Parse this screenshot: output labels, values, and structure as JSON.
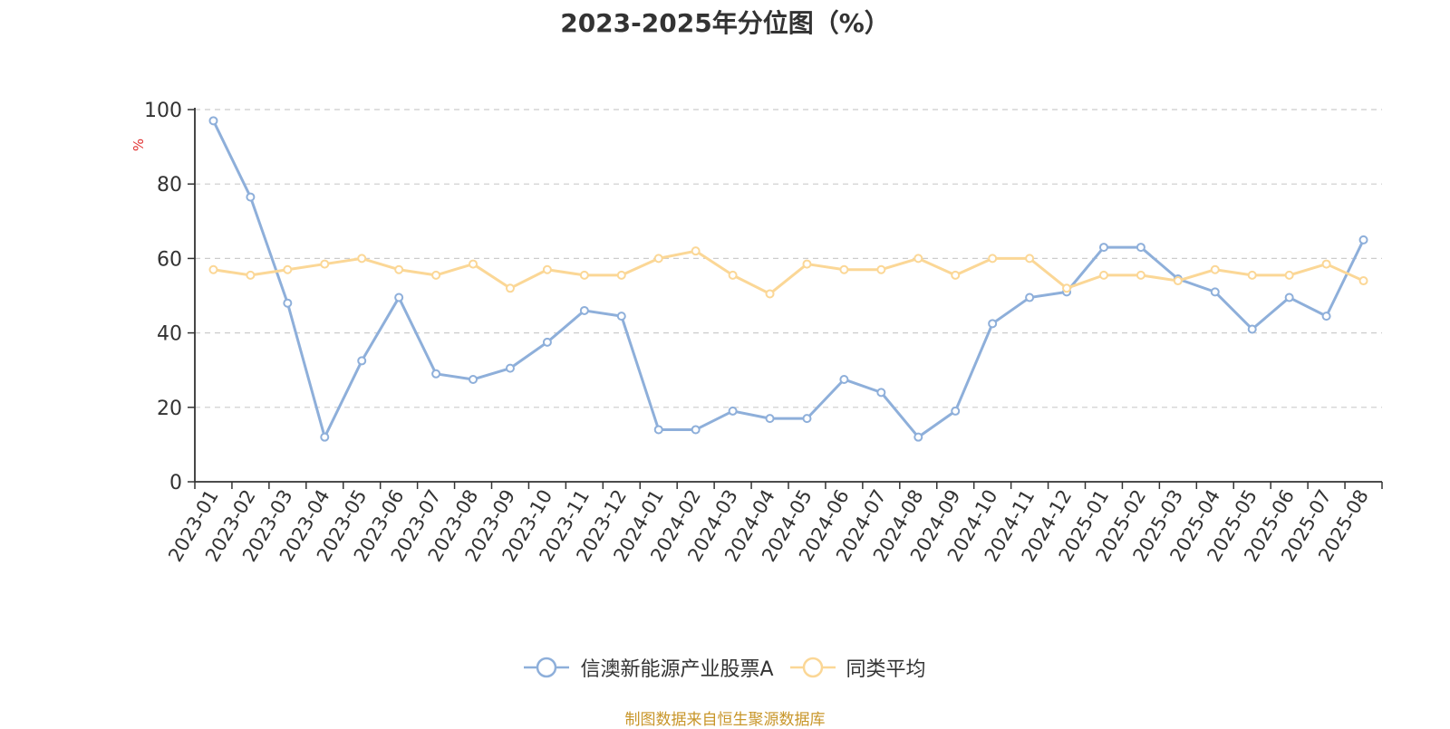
{
  "chart_data": {
    "type": "line",
    "title": "2023-2025年分位图（%）",
    "ylabel": "%",
    "xlabel": "",
    "ylim": [
      0,
      100
    ],
    "yticks": [
      0,
      20,
      40,
      60,
      80,
      100
    ],
    "grid": true,
    "legend_position": "bottom",
    "categories": [
      "2023-01",
      "2023-02",
      "2023-03",
      "2023-04",
      "2023-05",
      "2023-06",
      "2023-07",
      "2023-08",
      "2023-09",
      "2023-10",
      "2023-11",
      "2023-12",
      "2024-01",
      "2024-02",
      "2024-03",
      "2024-04",
      "2024-05",
      "2024-06",
      "2024-07",
      "2024-08",
      "2024-09",
      "2024-10",
      "2024-11",
      "2024-12",
      "2025-01",
      "2025-02",
      "2025-03",
      "2025-04",
      "2025-05",
      "2025-06",
      "2025-07",
      "2025-08"
    ],
    "series": [
      {
        "name": "信澳新能源产业股票A",
        "color": "#8eafda",
        "values": [
          97,
          76.5,
          48,
          12,
          32.5,
          49.5,
          29,
          27.5,
          30.5,
          37.5,
          46,
          44.5,
          14,
          14,
          19,
          17,
          17,
          27.5,
          24,
          12,
          19,
          42.5,
          49.5,
          51,
          63,
          63,
          54.5,
          51,
          41,
          49.5,
          44.5,
          65
        ]
      },
      {
        "name": "同类平均",
        "color": "#fbd796",
        "values": [
          57,
          55.5,
          57,
          58.5,
          60,
          57,
          55.5,
          58.5,
          52,
          57,
          55.5,
          55.5,
          60,
          62,
          55.5,
          50.5,
          58.5,
          57,
          57,
          60,
          55.5,
          60,
          60,
          52,
          55.5,
          55.5,
          54,
          57,
          55.5,
          55.5,
          58.5,
          54
        ]
      }
    ]
  },
  "source_text": "制图数据来自恒生聚源数据库",
  "colors": {
    "axis": "#333333",
    "grid": "#cccccc",
    "ylabel": "#e03030",
    "source": "#c8962a"
  }
}
